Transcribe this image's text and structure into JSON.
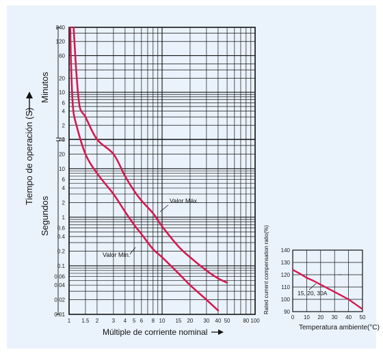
{
  "colors": {
    "background": "#eaf3fc",
    "curve": "#d6184f",
    "grid": "#111111"
  },
  "chart_data": [
    {
      "type": "line",
      "xlabel": "Múltiple de corriente nominal",
      "ylabel": "Tiempo de operación (S)",
      "y_group_labels": {
        "minutes": "Minutos",
        "seconds": "Segundos"
      },
      "x_scale": "log",
      "y_scale": "log",
      "xlim": [
        1,
        100
      ],
      "x_ticks": [
        "1",
        "1.5",
        "2",
        "3",
        "4",
        "5",
        "6",
        "8",
        "10",
        "15",
        "20",
        "30",
        "40",
        "50",
        "80",
        "100"
      ],
      "y_ticks_minutes": [
        "240",
        "120",
        "60",
        "20",
        "10",
        "6",
        "4",
        "2",
        "1"
      ],
      "y_ticks_seconds": [
        "40",
        "20",
        "10",
        "6",
        "4",
        "2",
        "1",
        "0.6",
        "0.4",
        "0.2",
        "0.1",
        "0.06",
        "0.04",
        "0.02",
        "0.01"
      ],
      "annotations": [
        "Valor Máx.",
        "Valor Mín."
      ],
      "series": [
        {
          "name": "Valor Máx.",
          "x": [
            1.12,
            1.2,
            1.3,
            1.5,
            2,
            3,
            4,
            5,
            6,
            8,
            10,
            15,
            20,
            30,
            40,
            50
          ],
          "y": [
            14400,
            1500,
            300,
            180,
            60,
            20,
            7,
            3.5,
            2.2,
            1.2,
            0.65,
            0.25,
            0.15,
            0.08,
            0.055,
            0.045
          ]
        },
        {
          "name": "Valor Mín.",
          "x": [
            1.03,
            1.05,
            1.1,
            1.2,
            1.5,
            2,
            3,
            4,
            5,
            6,
            8,
            10,
            15,
            20,
            30,
            40
          ],
          "y": [
            14400,
            2400,
            300,
            120,
            20,
            8,
            3,
            1.3,
            0.7,
            0.45,
            0.22,
            0.15,
            0.07,
            0.04,
            0.02,
            0.012
          ]
        }
      ]
    },
    {
      "type": "line",
      "xlabel": "Temperatura ambiente(°C)",
      "ylabel": "Rated current compensation ratio(%)",
      "xlim": [
        0,
        50
      ],
      "ylim": [
        90,
        140
      ],
      "x_ticks": [
        "0",
        "10",
        "20",
        "30",
        "40",
        "50"
      ],
      "y_ticks": [
        "90",
        "100",
        "110",
        "120",
        "130",
        "140"
      ],
      "annotations": [
        "15, 20, 30A"
      ],
      "series": [
        {
          "x": [
            0,
            5,
            10,
            15,
            20,
            25,
            30,
            35,
            40,
            45,
            50
          ],
          "y": [
            124,
            121,
            117.5,
            115,
            112,
            109,
            106,
            103,
            100,
            96,
            92
          ]
        }
      ]
    }
  ]
}
